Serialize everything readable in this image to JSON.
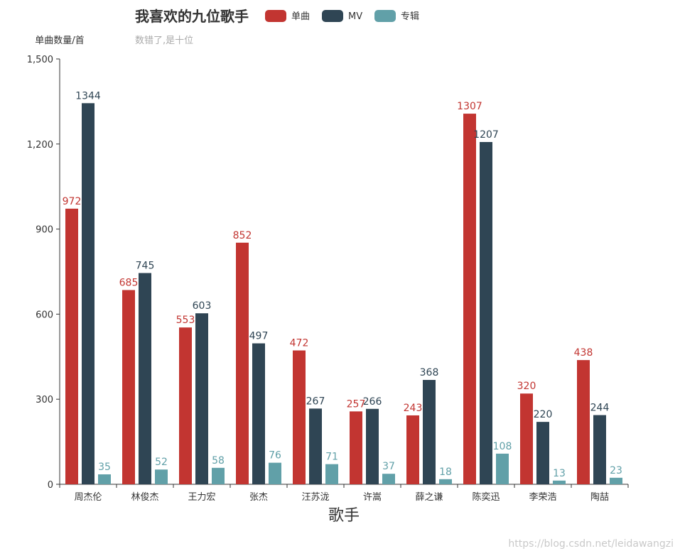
{
  "colors": {
    "axis": "#333333",
    "series": [
      "#c23531",
      "#2f4554",
      "#61a0a8"
    ]
  },
  "chart_data": {
    "type": "bar",
    "title": "我喜欢的九位歌手",
    "subtitle": "数错了,是十位",
    "ylabel": "单曲数量/首",
    "xlabel": "歌手",
    "ylim": [
      0,
      1500
    ],
    "yticks": [
      "0",
      "300",
      "600",
      "900",
      "1,200",
      "1,500"
    ],
    "categories": [
      "周杰伦",
      "林俊杰",
      "王力宏",
      "张杰",
      "汪苏泷",
      "许嵩",
      "薛之谦",
      "陈奕迅",
      "李荣浩",
      "陶喆"
    ],
    "series": [
      {
        "name": "单曲",
        "values": [
          972,
          685,
          553,
          852,
          472,
          257,
          243,
          1307,
          320,
          438
        ]
      },
      {
        "name": "MV",
        "values": [
          1344,
          745,
          603,
          497,
          267,
          266,
          368,
          1207,
          220,
          244
        ]
      },
      {
        "name": "专辑",
        "values": [
          35,
          52,
          58,
          76,
          71,
          37,
          18,
          108,
          13,
          23
        ]
      }
    ],
    "legend_position": "top",
    "grid": false
  },
  "watermark": "https://blog.csdn.net/leidawangzi"
}
